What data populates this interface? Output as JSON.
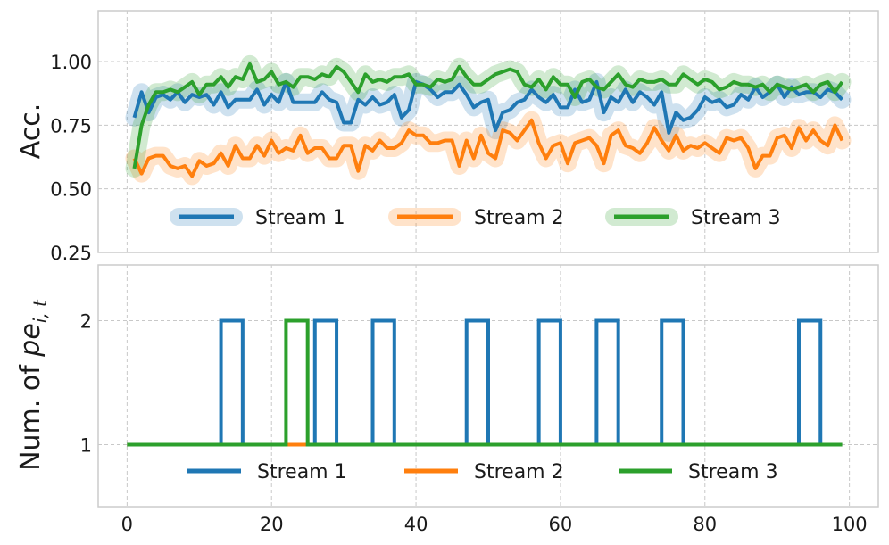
{
  "colors": {
    "stream1": "#1f77b4",
    "stream2": "#ff7f0e",
    "stream3": "#2ca02c"
  },
  "chart_data": [
    {
      "type": "line",
      "ylabel": "Acc.",
      "xlim": [
        -4,
        104
      ],
      "ylim": [
        0.25,
        1.2
      ],
      "yticks": [
        0.25,
        0.5,
        0.75,
        1.0
      ],
      "ytick_labels": [
        "0.25",
        "0.50",
        "0.75",
        "1.00"
      ],
      "grid": true,
      "legend": "lower-center",
      "x": [
        1,
        2,
        3,
        4,
        5,
        6,
        7,
        8,
        9,
        10,
        11,
        12,
        13,
        14,
        15,
        16,
        17,
        18,
        19,
        20,
        21,
        22,
        23,
        24,
        25,
        26,
        27,
        28,
        29,
        30,
        31,
        32,
        33,
        34,
        35,
        36,
        37,
        38,
        39,
        40,
        41,
        42,
        43,
        44,
        45,
        46,
        47,
        48,
        49,
        50,
        51,
        52,
        53,
        54,
        55,
        56,
        57,
        58,
        59,
        60,
        61,
        62,
        63,
        64,
        65,
        66,
        67,
        68,
        69,
        70,
        71,
        72,
        73,
        74,
        75,
        76,
        77,
        78,
        79,
        80,
        81,
        82,
        83,
        84,
        85,
        86,
        87,
        88,
        89,
        90,
        91,
        92,
        93,
        94,
        95,
        96,
        97,
        98,
        99
      ],
      "series": [
        {
          "name": "Stream 1",
          "values": [
            0.78,
            0.88,
            0.8,
            0.86,
            0.87,
            0.85,
            0.88,
            0.84,
            0.87,
            0.86,
            0.87,
            0.83,
            0.88,
            0.82,
            0.85,
            0.85,
            0.85,
            0.89,
            0.83,
            0.87,
            0.84,
            0.92,
            0.84,
            0.84,
            0.84,
            0.84,
            0.88,
            0.85,
            0.84,
            0.76,
            0.76,
            0.85,
            0.83,
            0.86,
            0.83,
            0.84,
            0.87,
            0.78,
            0.81,
            0.92,
            0.91,
            0.89,
            0.86,
            0.88,
            0.88,
            0.91,
            0.87,
            0.82,
            0.84,
            0.85,
            0.73,
            0.8,
            0.81,
            0.84,
            0.85,
            0.89,
            0.86,
            0.84,
            0.87,
            0.82,
            0.82,
            0.89,
            0.84,
            0.85,
            0.92,
            0.8,
            0.86,
            0.84,
            0.89,
            0.84,
            0.88,
            0.86,
            0.83,
            0.88,
            0.72,
            0.8,
            0.77,
            0.78,
            0.81,
            0.86,
            0.84,
            0.85,
            0.82,
            0.83,
            0.87,
            0.85,
            0.9,
            0.86,
            0.88,
            0.91,
            0.86,
            0.9,
            0.87,
            0.88,
            0.88,
            0.86,
            0.89,
            0.88,
            0.85
          ]
        },
        {
          "name": "Stream 2",
          "values": [
            0.62,
            0.56,
            0.62,
            0.63,
            0.63,
            0.59,
            0.58,
            0.59,
            0.55,
            0.61,
            0.59,
            0.6,
            0.64,
            0.59,
            0.67,
            0.62,
            0.62,
            0.67,
            0.63,
            0.69,
            0.64,
            0.66,
            0.65,
            0.71,
            0.64,
            0.66,
            0.66,
            0.62,
            0.62,
            0.67,
            0.67,
            0.57,
            0.67,
            0.65,
            0.69,
            0.66,
            0.66,
            0.68,
            0.73,
            0.71,
            0.71,
            0.68,
            0.68,
            0.69,
            0.69,
            0.59,
            0.69,
            0.62,
            0.71,
            0.64,
            0.62,
            0.73,
            0.72,
            0.69,
            0.73,
            0.77,
            0.68,
            0.62,
            0.67,
            0.68,
            0.6,
            0.68,
            0.69,
            0.7,
            0.67,
            0.6,
            0.71,
            0.73,
            0.67,
            0.66,
            0.64,
            0.68,
            0.74,
            0.69,
            0.65,
            0.71,
            0.65,
            0.67,
            0.66,
            0.68,
            0.66,
            0.64,
            0.7,
            0.69,
            0.7,
            0.66,
            0.58,
            0.63,
            0.63,
            0.7,
            0.71,
            0.66,
            0.74,
            0.69,
            0.73,
            0.69,
            0.67,
            0.75,
            0.69
          ]
        },
        {
          "name": "Stream 3",
          "values": [
            0.58,
            0.75,
            0.83,
            0.88,
            0.88,
            0.89,
            0.88,
            0.9,
            0.92,
            0.87,
            0.91,
            0.91,
            0.94,
            0.9,
            0.94,
            0.93,
            0.99,
            0.92,
            0.93,
            0.96,
            0.91,
            0.92,
            0.9,
            0.94,
            0.94,
            0.93,
            0.95,
            0.94,
            0.98,
            0.96,
            0.92,
            0.88,
            0.95,
            0.92,
            0.93,
            0.92,
            0.94,
            0.94,
            0.95,
            0.91,
            0.91,
            0.9,
            0.93,
            0.92,
            0.93,
            0.98,
            0.94,
            0.91,
            0.91,
            0.93,
            0.95,
            0.96,
            0.97,
            0.96,
            0.91,
            0.9,
            0.93,
            0.89,
            0.94,
            0.91,
            0.91,
            0.86,
            0.92,
            0.93,
            0.9,
            0.89,
            0.92,
            0.95,
            0.91,
            0.9,
            0.93,
            0.92,
            0.92,
            0.93,
            0.91,
            0.91,
            0.95,
            0.93,
            0.91,
            0.93,
            0.92,
            0.89,
            0.9,
            0.92,
            0.91,
            0.91,
            0.9,
            0.91,
            0.88,
            0.91,
            0.9,
            0.89,
            0.9,
            0.91,
            0.88,
            0.91,
            0.92,
            0.88,
            0.92
          ]
        }
      ]
    },
    {
      "type": "line",
      "ylabel_prefix": "Num. of ",
      "ylabel_var": "pe",
      "ylabel_sub": "i, t",
      "xlim": [
        -4,
        104
      ],
      "ylim": [
        0.5,
        2.45
      ],
      "yticks": [
        1,
        2
      ],
      "ytick_labels": [
        "1",
        "2"
      ],
      "xticks": [
        0,
        20,
        40,
        60,
        80,
        100
      ],
      "xtick_labels": [
        "0",
        "20",
        "40",
        "60",
        "80",
        "100"
      ],
      "grid": true,
      "legend": "lower-center",
      "x_start": 0,
      "x_end": 99,
      "series": [
        {
          "name": "Stream 1",
          "steps": [
            [
              13,
              16,
              2
            ],
            [
              26,
              29,
              2
            ],
            [
              34,
              37,
              2
            ],
            [
              47,
              50,
              2
            ],
            [
              57,
              60,
              2
            ],
            [
              65,
              68,
              2
            ],
            [
              74,
              77,
              2
            ],
            [
              93,
              96,
              2
            ]
          ],
          "baseline": 1
        },
        {
          "name": "Stream 2",
          "steps": [],
          "baseline": 1
        },
        {
          "name": "Stream 3",
          "steps": [
            [
              22,
              25,
              2
            ]
          ],
          "baseline": 1
        }
      ]
    }
  ]
}
